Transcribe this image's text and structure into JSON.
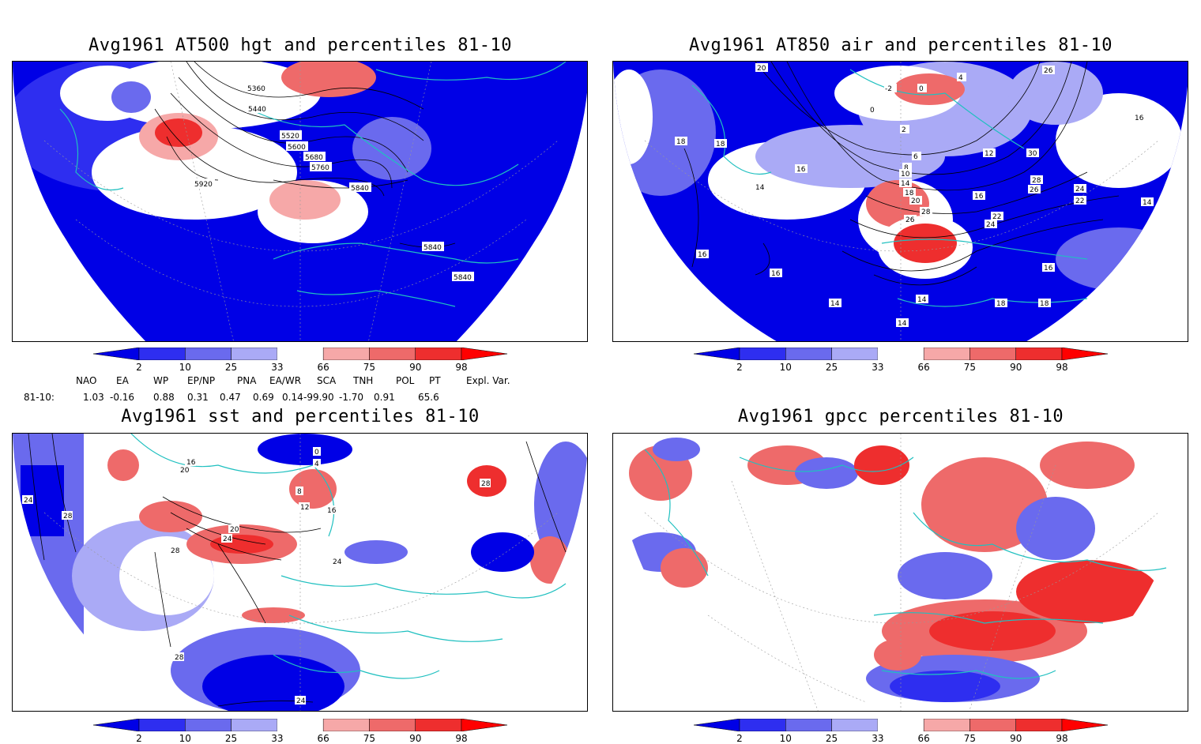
{
  "panels": [
    {
      "title": "Avg1961 AT500 hgt and percentiles 81-10",
      "contour_labels": [
        "5360",
        "5440",
        "5520",
        "5600",
        "5680",
        "5760",
        "5840",
        "5920",
        "5840",
        "5840",
        "5840"
      ]
    },
    {
      "title": "Avg1961 AT850 air and percentiles 81-10",
      "contour_labels": [
        "20",
        "16",
        "-2",
        "0",
        "4",
        "26",
        "0",
        "2",
        "6",
        "8",
        "10",
        "12",
        "14",
        "16",
        "18",
        "20",
        "22",
        "24",
        "26",
        "28",
        "30",
        "16",
        "18",
        "18",
        "16",
        "14",
        "16",
        "14",
        "14",
        "14",
        "16",
        "18",
        "18",
        "14",
        "22",
        "24",
        "26",
        "28"
      ]
    },
    {
      "title": "Avg1961 sst and percentiles 81-10",
      "contour_labels": [
        "24",
        "28",
        "16",
        "20",
        "0",
        "4",
        "8",
        "12",
        "16",
        "20",
        "24",
        "28",
        "28",
        "24",
        "28",
        "24"
      ]
    },
    {
      "title": "Avg1961 gpcc percentiles 81-10",
      "contour_labels": []
    }
  ],
  "colorbar": {
    "ticks": [
      "2",
      "10",
      "25",
      "33",
      "66",
      "75",
      "90",
      "98"
    ],
    "colors": {
      "p2": "#0000e6",
      "p10": "#2e2ef0",
      "p25": "#6a6aee",
      "p33": "#aaaaf6",
      "mid": "#ffffff",
      "p66": "#f6a8a8",
      "p75": "#ee6a6a",
      "p90": "#ee2e2e",
      "p98": "#ff0000"
    }
  },
  "indices": {
    "headers": [
      "NAO",
      "EA",
      "WP",
      "EP/NP",
      "PNA",
      "EA/WR",
      "SCA",
      "TNH",
      "POL",
      "PT",
      "Expl. Var."
    ],
    "row_label": "81-10:",
    "values": [
      "1.03",
      "-0.16",
      "0.88",
      "0.31",
      "0.47",
      "0.69",
      "0.14",
      "-99.90",
      "-1.70",
      "0.91",
      "65.6"
    ]
  },
  "colors": {
    "land_outline": "#20c0c0",
    "contour": "#000000",
    "grid": "#888888"
  }
}
